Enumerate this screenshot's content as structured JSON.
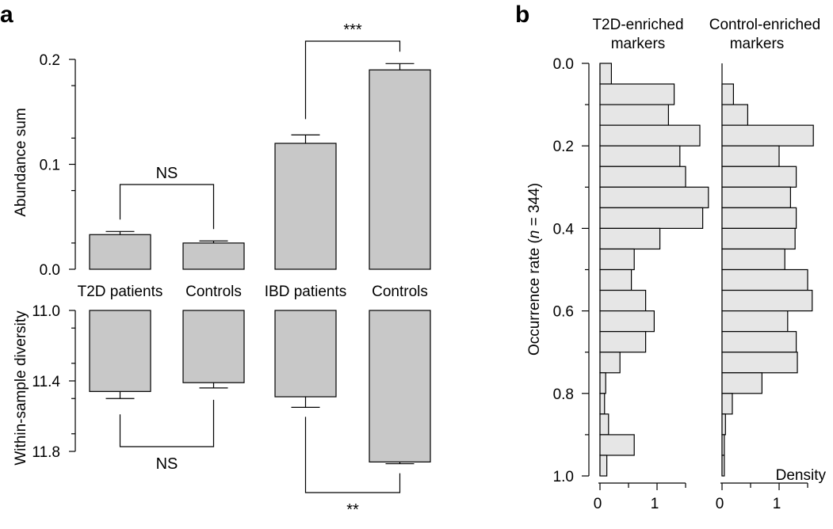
{
  "panel_labels": [
    "a",
    "b"
  ],
  "chart_data": [
    {
      "type": "bar",
      "panel": "a",
      "ylabel": "Abundance sum",
      "ylim": [
        0,
        0.2
      ],
      "yticks": [
        "0.0",
        "0.1",
        "0.2"
      ],
      "categories": [
        "T2D patients",
        "Controls",
        "IBD patients",
        "Controls"
      ],
      "values": [
        0.033,
        0.025,
        0.12,
        0.19
      ],
      "errors": [
        0.003,
        0.002,
        0.008,
        0.006
      ],
      "bar_color": "#c8c8c8",
      "comparisons": [
        {
          "groups": [
            0,
            1
          ],
          "label": "NS"
        },
        {
          "groups": [
            2,
            3
          ],
          "label": "***"
        }
      ]
    },
    {
      "type": "bar",
      "panel": "a",
      "ylabel": "Within-sample diversity",
      "ylim": [
        11.0,
        11.8
      ],
      "yticks": [
        "11.0",
        "11.4",
        "11.8"
      ],
      "inverted": true,
      "categories": [
        "T2D patients",
        "Controls",
        "IBD patients",
        "Controls"
      ],
      "values": [
        11.46,
        11.41,
        11.49,
        11.86
      ],
      "errors": [
        0.04,
        0.03,
        0.06,
        0.01
      ],
      "bar_color": "#c8c8c8",
      "comparisons": [
        {
          "groups": [
            0,
            1
          ],
          "label": "NS"
        },
        {
          "groups": [
            2,
            3
          ],
          "label": "**"
        }
      ]
    },
    {
      "type": "histogram",
      "panel": "b",
      "orientation": "horizontal",
      "ylabel_parts": [
        "Occurrence rate (",
        "n",
        " = 344)"
      ],
      "ylim": [
        0.0,
        1.0
      ],
      "yticks": [
        "0.0",
        "0.2",
        "0.4",
        "0.6",
        "0.8",
        "1.0"
      ],
      "xlabel": "Density",
      "xticks": [
        "0",
        "1"
      ],
      "bin_width": 0.05,
      "bar_color": "#e6e6e6",
      "series": [
        {
          "name": "T2D-enriched markers",
          "density": [
            0.2,
            1.3,
            1.2,
            1.75,
            1.4,
            1.5,
            1.9,
            1.8,
            1.05,
            0.6,
            0.55,
            0.8,
            0.95,
            0.8,
            0.35,
            0.1,
            0.08,
            0.15,
            0.6,
            0.12
          ]
        },
        {
          "name": "Control-enriched markers",
          "density": [
            0.0,
            0.2,
            0.45,
            1.6,
            1.0,
            1.3,
            1.2,
            1.3,
            1.28,
            1.1,
            1.5,
            1.58,
            1.15,
            1.3,
            1.32,
            0.7,
            0.18,
            0.06,
            0.04,
            0.04
          ]
        }
      ]
    }
  ]
}
